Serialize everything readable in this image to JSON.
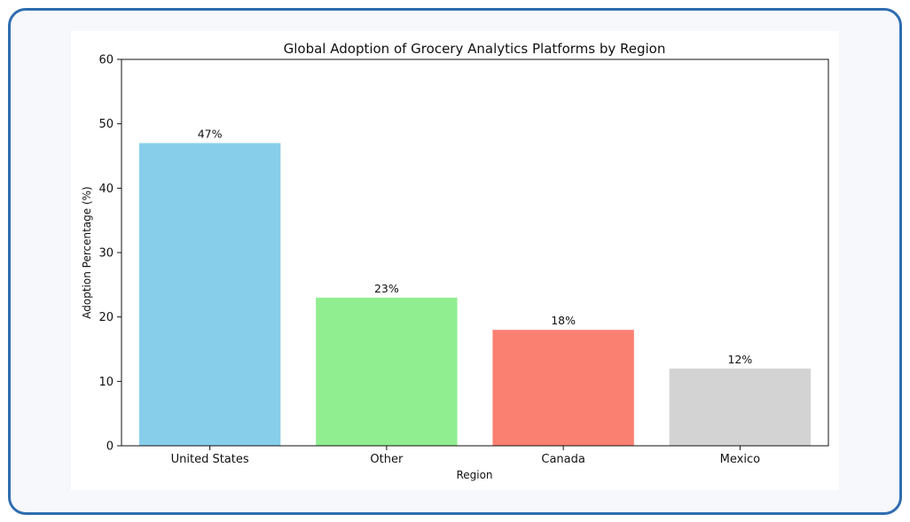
{
  "chart_data": {
    "type": "bar",
    "title": "Global Adoption of Grocery Analytics Platforms by Region",
    "xlabel": "Region",
    "ylabel": "Adoption Percentage (%)",
    "categories": [
      "United States",
      "Other",
      "Canada",
      "Mexico"
    ],
    "values": [
      47,
      23,
      18,
      12
    ],
    "data_labels": [
      "47%",
      "23%",
      "18%",
      "12%"
    ],
    "colors": [
      "#87ceeb",
      "#90ee90",
      "#fa8072",
      "#d3d3d3"
    ],
    "ylim": [
      0,
      60
    ],
    "yticks": [
      "0",
      "10",
      "20",
      "30",
      "40",
      "50",
      "60"
    ],
    "grid": false,
    "legend": "none"
  },
  "colors": {
    "frame_border": "#2f6db0",
    "frame_bg": "#f6f8fc"
  }
}
